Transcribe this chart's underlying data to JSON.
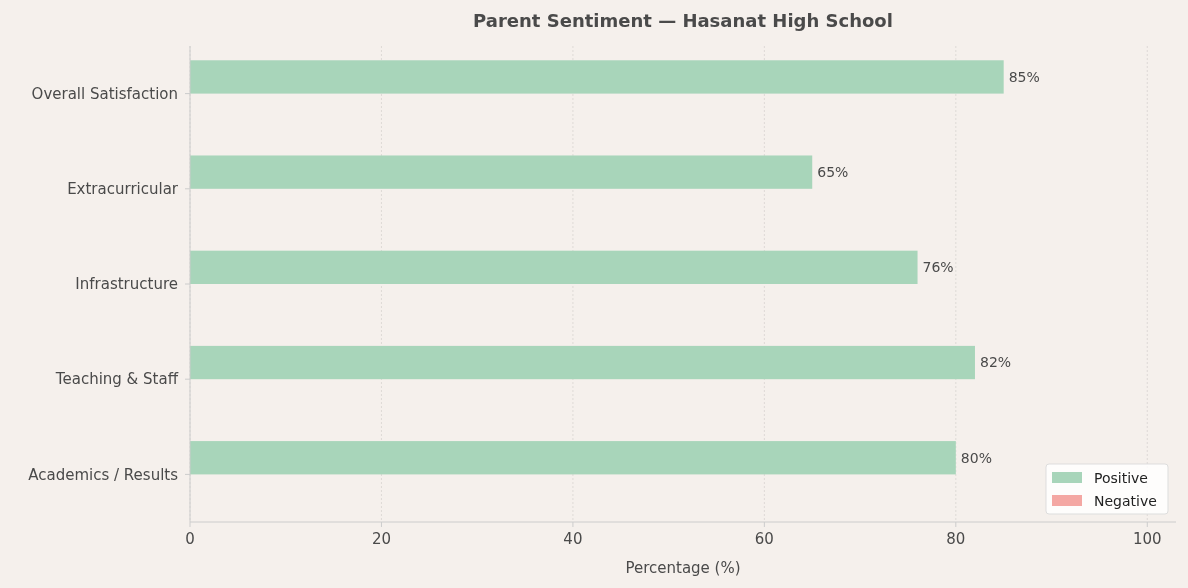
{
  "chart_data": {
    "type": "bar",
    "orientation": "horizontal",
    "title": "Parent Sentiment — Hasanat High School",
    "xlabel": "Percentage (%)",
    "categories": [
      "Overall Satisfaction",
      "Extracurricular",
      "Infrastructure",
      "Teaching & Staff",
      "Academics / Results"
    ],
    "series": [
      {
        "name": "Positive",
        "color": "#a8d5ba",
        "values": [
          85,
          65,
          76,
          82,
          80
        ],
        "value_labels": [
          "85%",
          "65%",
          "76%",
          "82%",
          "80%"
        ]
      },
      {
        "name": "Negative",
        "color": "#f4a7a3",
        "values": [
          0,
          0,
          0,
          0,
          0
        ],
        "value_labels": [
          null,
          null,
          null,
          null,
          null
        ]
      }
    ],
    "xlim": [
      0,
      103
    ],
    "xticks": [
      0,
      20,
      40,
      60,
      80,
      100
    ],
    "grid": "x",
    "legend": "bottom right"
  }
}
